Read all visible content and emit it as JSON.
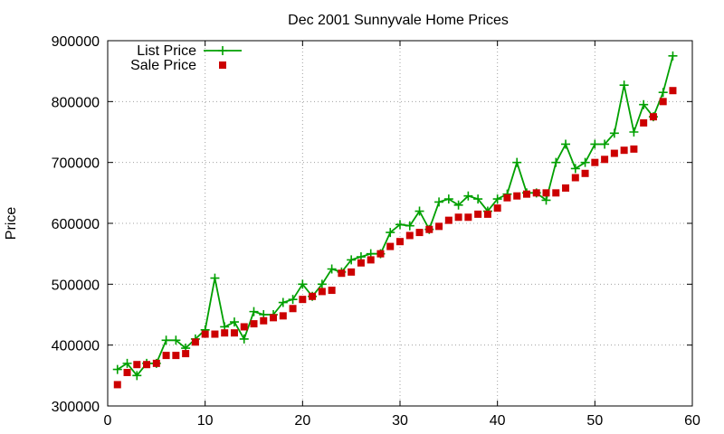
{
  "chart_data": {
    "type": "line",
    "title": "Dec 2001 Sunnyvale Home Prices",
    "xlabel": "",
    "ylabel": "Price",
    "xlim": [
      0,
      60
    ],
    "ylim": [
      300000,
      900000
    ],
    "x_ticks": [
      0,
      10,
      20,
      30,
      40,
      50,
      60
    ],
    "y_ticks": [
      300000,
      400000,
      500000,
      600000,
      700000,
      800000,
      900000
    ],
    "grid": true,
    "legend_position": "top-left",
    "series": [
      {
        "name": "List Price",
        "style": "line-with-plus-markers",
        "color": "#00a000",
        "x": [
          1,
          2,
          3,
          4,
          5,
          6,
          7,
          8,
          9,
          10,
          11,
          12,
          13,
          14,
          15,
          16,
          17,
          18,
          19,
          20,
          21,
          22,
          23,
          24,
          25,
          26,
          27,
          28,
          29,
          30,
          31,
          32,
          33,
          34,
          35,
          36,
          37,
          38,
          39,
          40,
          41,
          42,
          43,
          44,
          45,
          46,
          47,
          48,
          49,
          50,
          51,
          52,
          53,
          54,
          55,
          56,
          57,
          58
        ],
        "values": [
          360000,
          370000,
          350000,
          370000,
          370000,
          408000,
          408000,
          395000,
          410000,
          425000,
          510000,
          430000,
          438000,
          410000,
          455000,
          450000,
          450000,
          470000,
          475000,
          500000,
          480000,
          500000,
          525000,
          520000,
          540000,
          545000,
          550000,
          550000,
          585000,
          598000,
          596000,
          620000,
          590000,
          635000,
          640000,
          630000,
          645000,
          640000,
          620000,
          640000,
          648000,
          700000,
          650000,
          650000,
          638000,
          700000,
          730000,
          690000,
          700000,
          730000,
          730000,
          748000,
          827000,
          750000,
          795000,
          775000,
          815000,
          875000
        ]
      },
      {
        "name": "Sale Price",
        "style": "square-markers",
        "color": "#cc0000",
        "x": [
          1,
          2,
          3,
          4,
          5,
          6,
          7,
          8,
          9,
          10,
          11,
          12,
          13,
          14,
          15,
          16,
          17,
          18,
          19,
          20,
          21,
          22,
          23,
          24,
          25,
          26,
          27,
          28,
          29,
          30,
          31,
          32,
          33,
          34,
          35,
          36,
          37,
          38,
          39,
          40,
          41,
          42,
          43,
          44,
          45,
          46,
          47,
          48,
          49,
          50,
          51,
          52,
          53,
          54,
          55,
          56,
          57,
          58
        ],
        "values": [
          335000,
          355000,
          368000,
          368000,
          370000,
          383000,
          383000,
          386000,
          405000,
          418000,
          418000,
          420000,
          420000,
          430000,
          435000,
          440000,
          445000,
          448000,
          460000,
          475000,
          480000,
          488000,
          490000,
          518000,
          520000,
          535000,
          540000,
          550000,
          562000,
          570000,
          580000,
          585000,
          590000,
          595000,
          605000,
          610000,
          610000,
          615000,
          615000,
          625000,
          642000,
          645000,
          648000,
          650000,
          650000,
          650000,
          658000,
          675000,
          682000,
          700000,
          705000,
          715000,
          720000,
          722000,
          765000,
          775000,
          800000,
          818000
        ]
      }
    ]
  }
}
